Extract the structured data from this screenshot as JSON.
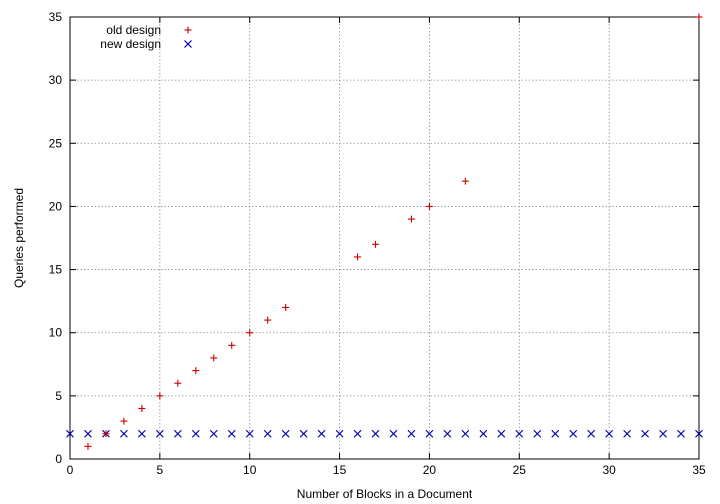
{
  "chart_data": {
    "type": "scatter",
    "title": "",
    "xlabel": "Number of Blocks in a Document",
    "ylabel": "Queries performed",
    "xlim": [
      0,
      35
    ],
    "ylim": [
      0,
      35
    ],
    "x_ticks": [
      0,
      5,
      10,
      15,
      20,
      25,
      30,
      35
    ],
    "y_ticks": [
      0,
      5,
      10,
      15,
      20,
      25,
      30,
      35
    ],
    "grid": true,
    "legend_position": "top-left",
    "series": [
      {
        "name": "old design",
        "marker": "+",
        "color": "#cc0000",
        "points": [
          [
            1,
            1
          ],
          [
            2,
            2
          ],
          [
            3,
            3
          ],
          [
            4,
            4
          ],
          [
            5,
            5
          ],
          [
            6,
            6
          ],
          [
            7,
            7
          ],
          [
            8,
            8
          ],
          [
            9,
            9
          ],
          [
            10,
            10
          ],
          [
            11,
            11
          ],
          [
            12,
            12
          ],
          [
            16,
            16
          ],
          [
            17,
            17
          ],
          [
            19,
            19
          ],
          [
            20,
            20
          ],
          [
            22,
            22
          ],
          [
            35,
            35
          ]
        ]
      },
      {
        "name": "new design",
        "marker": "x",
        "color": "#0000aa",
        "points": [
          [
            0,
            2
          ],
          [
            1,
            2
          ],
          [
            2,
            2
          ],
          [
            3,
            2
          ],
          [
            4,
            2
          ],
          [
            5,
            2
          ],
          [
            6,
            2
          ],
          [
            7,
            2
          ],
          [
            8,
            2
          ],
          [
            9,
            2
          ],
          [
            10,
            2
          ],
          [
            11,
            2
          ],
          [
            12,
            2
          ],
          [
            13,
            2
          ],
          [
            14,
            2
          ],
          [
            15,
            2
          ],
          [
            16,
            2
          ],
          [
            17,
            2
          ],
          [
            18,
            2
          ],
          [
            19,
            2
          ],
          [
            20,
            2
          ],
          [
            21,
            2
          ],
          [
            22,
            2
          ],
          [
            23,
            2
          ],
          [
            24,
            2
          ],
          [
            25,
            2
          ],
          [
            26,
            2
          ],
          [
            27,
            2
          ],
          [
            28,
            2
          ],
          [
            29,
            2
          ],
          [
            30,
            2
          ],
          [
            31,
            2
          ],
          [
            32,
            2
          ],
          [
            33,
            2
          ],
          [
            34,
            2
          ],
          [
            35,
            2
          ]
        ]
      }
    ]
  }
}
